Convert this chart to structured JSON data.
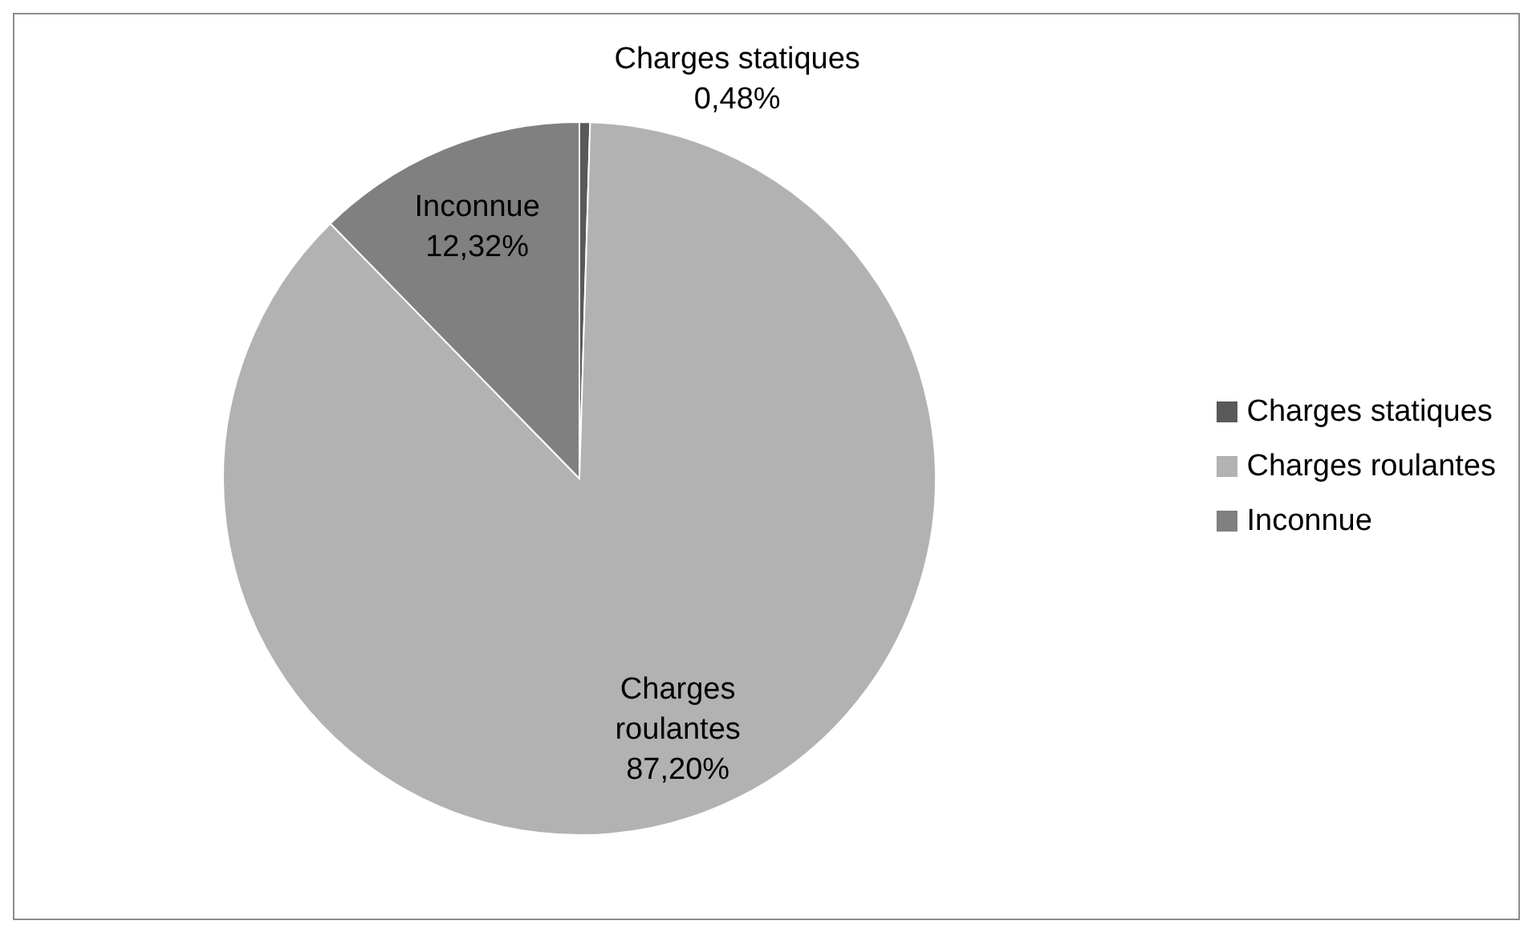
{
  "chart_data": {
    "type": "pie",
    "categories": [
      "Charges statiques",
      "Charges roulantes",
      "Inconnue"
    ],
    "values": [
      0.48,
      87.2,
      12.32
    ],
    "colors": [
      "#595959",
      "#b2b2b2",
      "#808080"
    ],
    "value_labels": [
      "0,48%",
      "87,20%",
      "12,32%"
    ],
    "legend": "right"
  }
}
